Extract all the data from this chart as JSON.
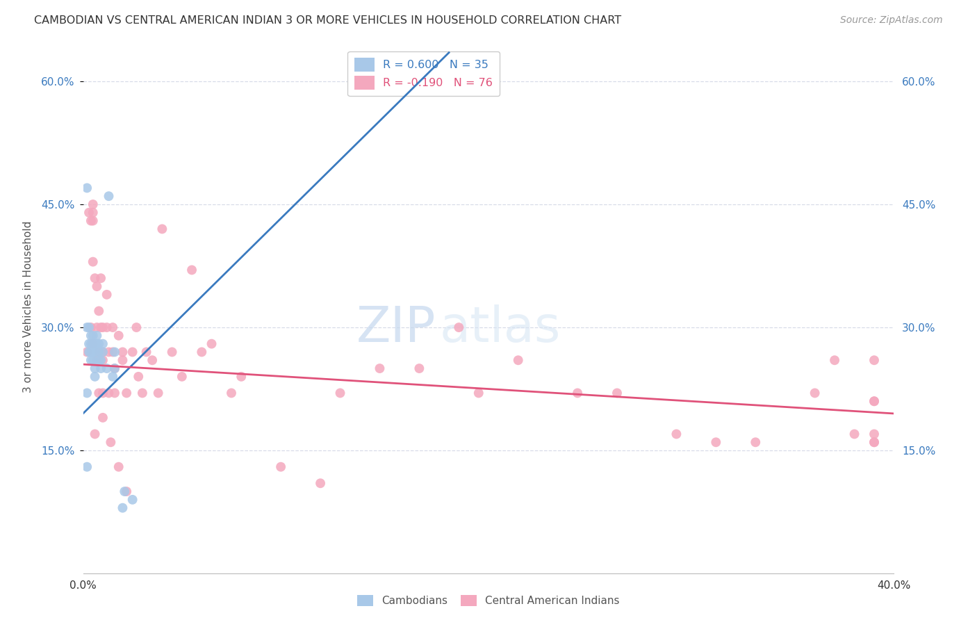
{
  "title": "CAMBODIAN VS CENTRAL AMERICAN INDIAN 3 OR MORE VEHICLES IN HOUSEHOLD CORRELATION CHART",
  "source": "Source: ZipAtlas.com",
  "ylabel": "3 or more Vehicles in Household",
  "ylim": [
    0.0,
    0.65
  ],
  "xlim": [
    0.0,
    0.41
  ],
  "yticks": [
    0.15,
    0.3,
    0.45,
    0.6
  ],
  "ytick_labels": [
    "15.0%",
    "30.0%",
    "45.0%",
    "60.0%"
  ],
  "xticks": [
    0.0,
    0.04556,
    0.09111,
    0.13667,
    0.18222,
    0.22778,
    0.27333,
    0.31889,
    0.36444,
    0.41
  ],
  "xtick_labels": [
    "0.0%",
    "",
    "",
    "",
    "",
    "",
    "",
    "",
    "",
    "40.0%"
  ],
  "cambodian_color": "#a8c8e8",
  "central_american_color": "#f4a8be",
  "trendline_cambodian_color": "#3a7abf",
  "trendline_central_american_color": "#e0527a",
  "R_cambodian": 0.6,
  "N_cambodian": 35,
  "R_central_american": -0.19,
  "N_central_american": 76,
  "background_color": "#ffffff",
  "grid_color": "#d8dce8",
  "watermark_zip": "ZIP",
  "watermark_atlas": "atlas",
  "cam_trend_x0": 0.0,
  "cam_trend_y0": 0.195,
  "cam_trend_x1": 0.185,
  "cam_trend_y1": 0.635,
  "ca_trend_x0": 0.0,
  "ca_trend_y0": 0.255,
  "ca_trend_x1": 0.41,
  "ca_trend_y1": 0.195,
  "cambodian_x": [
    0.002,
    0.002,
    0.002,
    0.002,
    0.003,
    0.003,
    0.003,
    0.004,
    0.004,
    0.004,
    0.004,
    0.005,
    0.005,
    0.005,
    0.006,
    0.006,
    0.006,
    0.006,
    0.007,
    0.007,
    0.008,
    0.008,
    0.008,
    0.009,
    0.009,
    0.01,
    0.01,
    0.012,
    0.013,
    0.015,
    0.016,
    0.016,
    0.02,
    0.021,
    0.025
  ],
  "cambodian_y": [
    0.47,
    0.3,
    0.22,
    0.13,
    0.3,
    0.28,
    0.27,
    0.29,
    0.28,
    0.27,
    0.26,
    0.29,
    0.27,
    0.26,
    0.28,
    0.27,
    0.25,
    0.24,
    0.29,
    0.28,
    0.28,
    0.27,
    0.26,
    0.26,
    0.25,
    0.28,
    0.27,
    0.25,
    0.46,
    0.24,
    0.27,
    0.25,
    0.08,
    0.1,
    0.09
  ],
  "central_american_x": [
    0.002,
    0.003,
    0.004,
    0.004,
    0.005,
    0.005,
    0.005,
    0.005,
    0.005,
    0.006,
    0.006,
    0.007,
    0.007,
    0.007,
    0.008,
    0.008,
    0.008,
    0.009,
    0.009,
    0.01,
    0.01,
    0.01,
    0.01,
    0.01,
    0.012,
    0.012,
    0.013,
    0.013,
    0.014,
    0.015,
    0.015,
    0.016,
    0.016,
    0.018,
    0.018,
    0.02,
    0.02,
    0.022,
    0.022,
    0.025,
    0.027,
    0.028,
    0.03,
    0.032,
    0.035,
    0.038,
    0.04,
    0.045,
    0.05,
    0.055,
    0.06,
    0.065,
    0.075,
    0.08,
    0.1,
    0.12,
    0.13,
    0.15,
    0.17,
    0.19,
    0.2,
    0.22,
    0.25,
    0.27,
    0.3,
    0.32,
    0.34,
    0.37,
    0.38,
    0.39,
    0.4,
    0.4,
    0.4,
    0.4,
    0.4,
    0.4
  ],
  "central_american_y": [
    0.27,
    0.44,
    0.43,
    0.3,
    0.45,
    0.44,
    0.43,
    0.38,
    0.28,
    0.36,
    0.17,
    0.35,
    0.3,
    0.26,
    0.32,
    0.27,
    0.22,
    0.36,
    0.3,
    0.3,
    0.27,
    0.26,
    0.22,
    0.19,
    0.34,
    0.3,
    0.27,
    0.22,
    0.16,
    0.3,
    0.27,
    0.25,
    0.22,
    0.29,
    0.13,
    0.27,
    0.26,
    0.22,
    0.1,
    0.27,
    0.3,
    0.24,
    0.22,
    0.27,
    0.26,
    0.22,
    0.42,
    0.27,
    0.24,
    0.37,
    0.27,
    0.28,
    0.22,
    0.24,
    0.13,
    0.11,
    0.22,
    0.25,
    0.25,
    0.3,
    0.22,
    0.26,
    0.22,
    0.22,
    0.17,
    0.16,
    0.16,
    0.22,
    0.26,
    0.17,
    0.26,
    0.21,
    0.17,
    0.16,
    0.16,
    0.21
  ]
}
